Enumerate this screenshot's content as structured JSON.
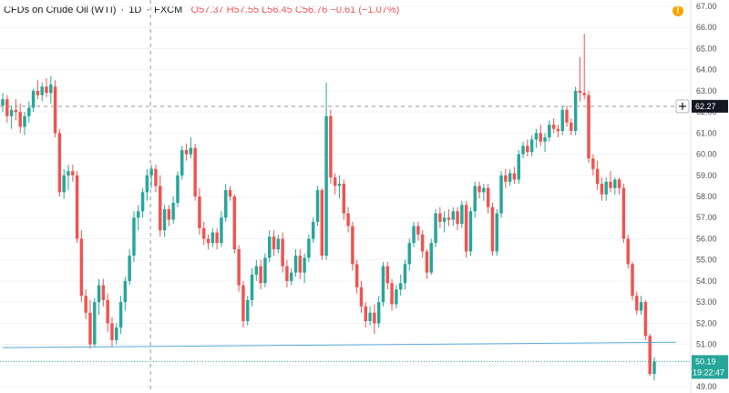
{
  "legend": {
    "symbol": "CFDs on Crude Oil (WTI)",
    "interval": "1D",
    "exchange": "FXCM",
    "open": "O57.37",
    "high": "H57.55",
    "low": "L56.45",
    "close": "C56.76",
    "change": "−0.61 (−1.07%)"
  },
  "colors": {
    "up": "#26a69a",
    "down": "#ef5350",
    "trendline": "#5aa9d6",
    "crosshair_label_bg": "#131722",
    "last_price_bg": "#26a69a",
    "alert": "#f7a600"
  },
  "icons": {
    "alert": "exclamation-circle-icon",
    "crosshair": "plus-icon"
  },
  "alert_glyph": "!",
  "price_axis": {
    "ticks": [
      "49.00",
      "50.00",
      "51.00",
      "52.00",
      "53.00",
      "54.00",
      "55.00",
      "56.00",
      "57.00",
      "58.00",
      "59.00",
      "60.00",
      "61.00",
      "62.00",
      "63.00",
      "64.00",
      "65.00",
      "66.00",
      "67.00"
    ],
    "crosshair_price": "62.27",
    "last_price": "50.19",
    "countdown": "19:22:47"
  },
  "chart_data": {
    "type": "candlestick",
    "interval": "1D",
    "ylim": [
      48.7,
      67.3
    ],
    "crosshair_price": 62.27,
    "last_price": 50.19,
    "trendline": {
      "from": {
        "index": 0,
        "price": 50.85
      },
      "to": {
        "index": 154,
        "price": 51.1
      }
    },
    "candles": [
      [
        62.3,
        62.9,
        62.0,
        62.6
      ],
      [
        62.6,
        62.8,
        61.5,
        61.8
      ],
      [
        61.8,
        62.3,
        61.2,
        62.1
      ],
      [
        62.1,
        62.6,
        61.6,
        62.0
      ],
      [
        62.0,
        62.4,
        61.0,
        61.3
      ],
      [
        61.3,
        62.0,
        60.9,
        61.8
      ],
      [
        61.8,
        62.5,
        61.5,
        62.2
      ],
      [
        62.2,
        63.1,
        62.0,
        63.0
      ],
      [
        63.0,
        63.5,
        62.6,
        62.8
      ],
      [
        62.8,
        63.4,
        62.5,
        63.2
      ],
      [
        63.2,
        63.6,
        62.7,
        62.9
      ],
      [
        62.9,
        63.7,
        62.4,
        63.3
      ],
      [
        63.2,
        63.5,
        60.8,
        61.0
      ],
      [
        61.0,
        61.2,
        58.0,
        58.2
      ],
      [
        58.2,
        59.3,
        57.9,
        59.0
      ],
      [
        59.0,
        59.5,
        58.3,
        59.2
      ],
      [
        59.2,
        59.5,
        58.7,
        59.0
      ],
      [
        59.0,
        59.2,
        55.8,
        56.0
      ],
      [
        56.0,
        56.4,
        53.0,
        53.3
      ],
      [
        53.3,
        53.6,
        52.2,
        52.5
      ],
      [
        52.5,
        53.1,
        50.8,
        51.0
      ],
      [
        51.0,
        53.2,
        50.9,
        53.0
      ],
      [
        53.0,
        54.1,
        52.4,
        53.8
      ],
      [
        53.8,
        54.1,
        52.8,
        53.1
      ],
      [
        53.1,
        53.4,
        51.6,
        52.0
      ],
      [
        52.0,
        52.3,
        50.9,
        51.2
      ],
      [
        51.2,
        52.0,
        51.0,
        51.8
      ],
      [
        51.8,
        53.3,
        51.5,
        53.0
      ],
      [
        53.0,
        54.2,
        52.6,
        54.0
      ],
      [
        54.0,
        55.5,
        53.8,
        55.2
      ],
      [
        55.2,
        57.3,
        54.9,
        57.0
      ],
      [
        57.0,
        57.6,
        56.4,
        57.3
      ],
      [
        57.3,
        58.4,
        57.0,
        58.2
      ],
      [
        58.2,
        59.3,
        57.8,
        59.0
      ],
      [
        59.0,
        59.5,
        58.4,
        59.3
      ],
      [
        59.3,
        59.5,
        58.2,
        58.5
      ],
      [
        58.5,
        59.0,
        56.1,
        56.4
      ],
      [
        56.4,
        57.6,
        56.1,
        57.4
      ],
      [
        57.4,
        57.6,
        56.6,
        56.9
      ],
      [
        56.9,
        58.0,
        56.7,
        57.7
      ],
      [
        57.7,
        59.2,
        57.5,
        59.0
      ],
      [
        59.0,
        60.4,
        58.8,
        60.2
      ],
      [
        60.2,
        60.5,
        59.7,
        60.0
      ],
      [
        60.0,
        60.8,
        59.8,
        60.3
      ],
      [
        60.3,
        60.5,
        57.8,
        58.0
      ],
      [
        58.0,
        58.4,
        56.2,
        56.5
      ],
      [
        56.5,
        56.8,
        55.7,
        56.0
      ],
      [
        56.0,
        56.2,
        55.5,
        55.8
      ],
      [
        55.8,
        56.5,
        55.6,
        56.3
      ],
      [
        56.3,
        56.5,
        55.5,
        55.8
      ],
      [
        55.8,
        57.3,
        55.6,
        57.0
      ],
      [
        57.0,
        58.6,
        56.8,
        58.3
      ],
      [
        58.3,
        58.5,
        57.8,
        58.0
      ],
      [
        58.0,
        58.1,
        55.3,
        55.5
      ],
      [
        55.5,
        55.7,
        53.5,
        53.8
      ],
      [
        53.8,
        54.0,
        51.8,
        52.1
      ],
      [
        52.1,
        53.3,
        51.9,
        53.1
      ],
      [
        53.1,
        54.6,
        52.8,
        54.3
      ],
      [
        54.3,
        55.0,
        54.0,
        54.7
      ],
      [
        54.7,
        55.0,
        53.6,
        53.9
      ],
      [
        53.9,
        55.3,
        53.7,
        55.1
      ],
      [
        55.1,
        56.4,
        54.9,
        56.1
      ],
      [
        56.1,
        56.4,
        55.2,
        55.5
      ],
      [
        55.5,
        56.2,
        55.3,
        56.0
      ],
      [
        56.0,
        56.3,
        54.4,
        54.7
      ],
      [
        54.7,
        55.0,
        53.7,
        54.0
      ],
      [
        54.0,
        54.6,
        53.8,
        54.4
      ],
      [
        54.4,
        55.5,
        54.2,
        55.2
      ],
      [
        55.2,
        55.5,
        54.1,
        54.4
      ],
      [
        54.4,
        55.3,
        53.9,
        55.1
      ],
      [
        55.1,
        56.2,
        54.9,
        56.0
      ],
      [
        56.0,
        57.0,
        55.8,
        56.8
      ],
      [
        56.8,
        58.5,
        56.6,
        58.3
      ],
      [
        58.3,
        58.4,
        55.0,
        55.2
      ],
      [
        55.2,
        63.4,
        55.0,
        61.8
      ],
      [
        61.8,
        62.1,
        58.6,
        58.9
      ],
      [
        58.9,
        59.1,
        58.1,
        58.5
      ],
      [
        58.5,
        59.0,
        57.9,
        58.6
      ],
      [
        58.6,
        58.8,
        56.9,
        57.2
      ],
      [
        57.2,
        57.5,
        56.3,
        56.6
      ],
      [
        56.6,
        56.8,
        54.5,
        54.8
      ],
      [
        54.8,
        55.0,
        53.4,
        53.7
      ],
      [
        53.7,
        54.0,
        52.5,
        52.8
      ],
      [
        52.8,
        53.0,
        51.8,
        52.1
      ],
      [
        52.1,
        52.8,
        51.9,
        52.5
      ],
      [
        52.5,
        52.9,
        51.5,
        52.0
      ],
      [
        52.0,
        53.3,
        51.8,
        53.0
      ],
      [
        53.0,
        54.9,
        52.8,
        54.7
      ],
      [
        54.7,
        54.9,
        53.6,
        53.9
      ],
      [
        53.9,
        54.1,
        52.6,
        52.9
      ],
      [
        52.9,
        53.8,
        52.7,
        53.6
      ],
      [
        53.6,
        54.3,
        53.3,
        53.9
      ],
      [
        53.9,
        55.0,
        53.6,
        54.8
      ],
      [
        54.8,
        56.0,
        54.5,
        55.8
      ],
      [
        55.8,
        56.8,
        55.6,
        56.6
      ],
      [
        56.6,
        56.8,
        55.9,
        56.2
      ],
      [
        56.2,
        56.4,
        55.1,
        55.4
      ],
      [
        55.4,
        55.5,
        54.1,
        54.4
      ],
      [
        54.4,
        56.0,
        54.3,
        55.8
      ],
      [
        55.8,
        57.4,
        55.6,
        57.2
      ],
      [
        57.2,
        57.5,
        56.5,
        56.8
      ],
      [
        56.8,
        57.3,
        56.3,
        57.0
      ],
      [
        57.0,
        57.4,
        56.6,
        56.9
      ],
      [
        56.9,
        57.5,
        56.6,
        57.3
      ],
      [
        57.3,
        57.5,
        56.4,
        56.7
      ],
      [
        56.7,
        57.8,
        56.5,
        57.6
      ],
      [
        57.6,
        57.8,
        55.1,
        55.4
      ],
      [
        55.4,
        57.5,
        55.2,
        57.3
      ],
      [
        57.3,
        58.7,
        57.0,
        58.5
      ],
      [
        58.5,
        58.7,
        57.9,
        58.2
      ],
      [
        58.2,
        58.6,
        57.8,
        58.4
      ],
      [
        58.4,
        58.6,
        57.2,
        57.5
      ],
      [
        57.5,
        57.7,
        55.2,
        55.4
      ],
      [
        55.4,
        57.4,
        55.2,
        57.2
      ],
      [
        57.2,
        59.2,
        57.0,
        59.0
      ],
      [
        59.0,
        59.3,
        58.4,
        58.7
      ],
      [
        58.7,
        59.3,
        58.5,
        59.1
      ],
      [
        59.1,
        59.4,
        58.6,
        58.8
      ],
      [
        58.8,
        60.2,
        58.6,
        60.0
      ],
      [
        60.0,
        60.6,
        59.8,
        60.4
      ],
      [
        60.4,
        60.7,
        59.9,
        60.1
      ],
      [
        60.1,
        60.9,
        59.9,
        60.7
      ],
      [
        60.7,
        61.2,
        60.3,
        61.0
      ],
      [
        61.0,
        61.4,
        60.4,
        60.6
      ],
      [
        60.6,
        61.0,
        60.1,
        60.8
      ],
      [
        60.8,
        61.6,
        60.6,
        61.4
      ],
      [
        61.4,
        61.7,
        61.0,
        61.2
      ],
      [
        61.2,
        61.4,
        60.8,
        61.1
      ],
      [
        61.1,
        62.3,
        60.9,
        62.1
      ],
      [
        62.1,
        62.3,
        61.3,
        61.5
      ],
      [
        61.5,
        61.7,
        60.9,
        61.1
      ],
      [
        61.1,
        63.2,
        60.9,
        63.0
      ],
      [
        63.0,
        64.6,
        62.5,
        62.9
      ],
      [
        62.9,
        65.7,
        62.6,
        62.8
      ],
      [
        62.8,
        63.0,
        59.6,
        59.8
      ],
      [
        59.8,
        60.0,
        59.0,
        59.3
      ],
      [
        59.3,
        59.7,
        58.3,
        58.6
      ],
      [
        58.6,
        58.9,
        57.8,
        58.1
      ],
      [
        58.1,
        58.9,
        57.8,
        58.7
      ],
      [
        58.7,
        59.2,
        58.2,
        58.4
      ],
      [
        58.4,
        58.9,
        58.1,
        58.8
      ],
      [
        58.8,
        58.9,
        58.1,
        58.4
      ],
      [
        58.4,
        58.6,
        55.8,
        56.0
      ],
      [
        56.0,
        56.2,
        54.6,
        54.8
      ],
      [
        54.8,
        54.9,
        53.1,
        53.3
      ],
      [
        53.3,
        53.5,
        52.4,
        52.6
      ],
      [
        52.6,
        53.3,
        52.4,
        53.0
      ],
      [
        53.0,
        53.1,
        51.2,
        51.4
      ],
      [
        51.4,
        51.5,
        49.5,
        49.6
      ],
      [
        49.6,
        50.4,
        49.3,
        50.19
      ]
    ]
  }
}
